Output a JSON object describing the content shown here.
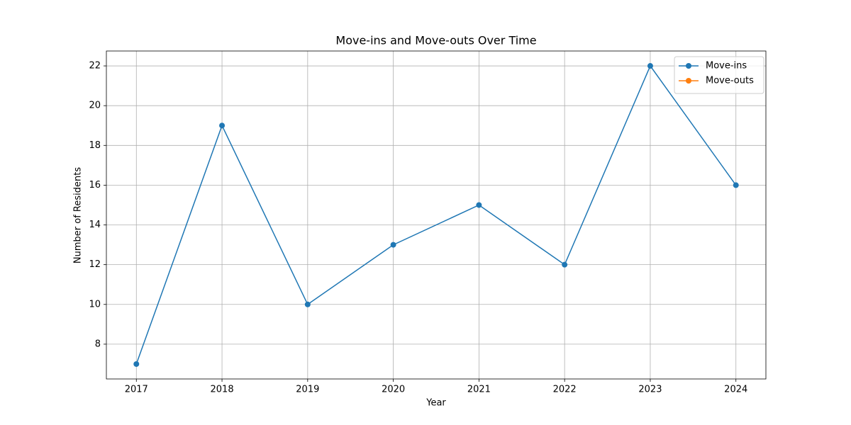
{
  "chart_data": {
    "type": "line",
    "title": "Move-ins and Move-outs Over Time",
    "x_label": "Year",
    "y_label": "Number of Residents",
    "x": [
      2017,
      2018,
      2019,
      2020,
      2021,
      2022,
      2023,
      2024
    ],
    "series": [
      {
        "name": "Move-ins",
        "color": "#1f77b4",
        "values": [
          7,
          19,
          10,
          13,
          15,
          12,
          22,
          16
        ]
      },
      {
        "name": "Move-outs",
        "color": "#ff7f0e",
        "values": [
          null,
          null,
          null,
          null,
          null,
          null,
          null,
          null
        ]
      }
    ],
    "xlim": [
      2016.65,
      2024.35
    ],
    "xticks": [
      2017,
      2018,
      2019,
      2020,
      2021,
      2022,
      2023,
      2024
    ],
    "ylim": [
      6.25,
      22.75
    ],
    "yticks": [
      8,
      10,
      12,
      14,
      16,
      18,
      20,
      22
    ],
    "grid": true,
    "legend": "upper right"
  }
}
